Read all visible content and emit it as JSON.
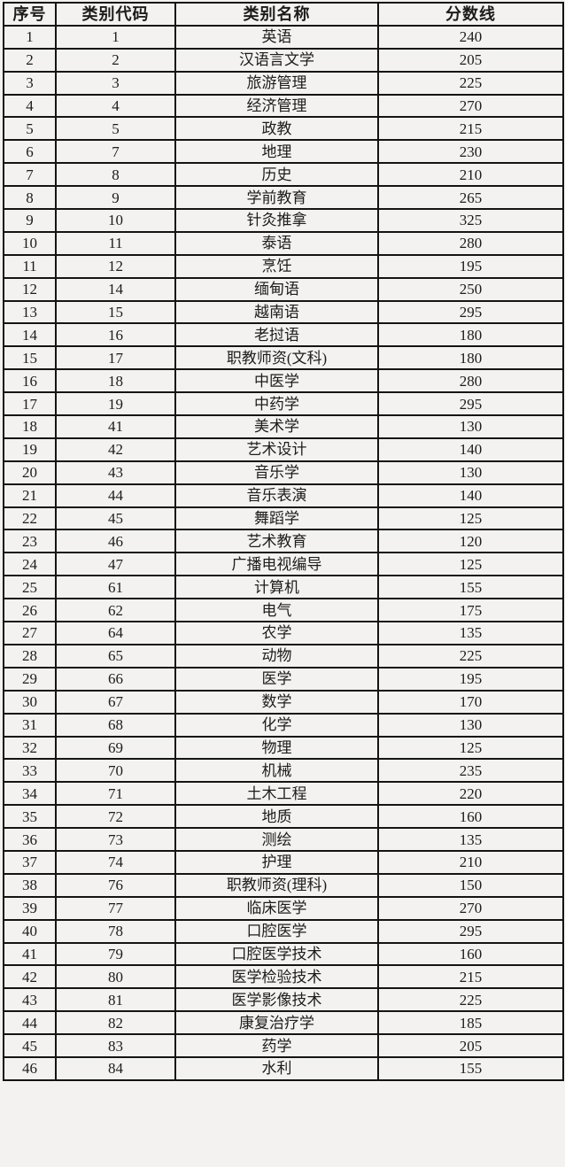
{
  "table": {
    "columns": [
      "序号",
      "类别代码",
      "类别名称",
      "分数线"
    ],
    "column_keys": [
      "index",
      "category-code",
      "category-name",
      "score-line"
    ],
    "rows": [
      [
        "1",
        "1",
        "英语",
        "240"
      ],
      [
        "2",
        "2",
        "汉语言文学",
        "205"
      ],
      [
        "3",
        "3",
        "旅游管理",
        "225"
      ],
      [
        "4",
        "4",
        "经济管理",
        "270"
      ],
      [
        "5",
        "5",
        "政教",
        "215"
      ],
      [
        "6",
        "7",
        "地理",
        "230"
      ],
      [
        "7",
        "8",
        "历史",
        "210"
      ],
      [
        "8",
        "9",
        "学前教育",
        "265"
      ],
      [
        "9",
        "10",
        "针灸推拿",
        "325"
      ],
      [
        "10",
        "11",
        "泰语",
        "280"
      ],
      [
        "11",
        "12",
        "烹饪",
        "195"
      ],
      [
        "12",
        "14",
        "缅甸语",
        "250"
      ],
      [
        "13",
        "15",
        "越南语",
        "295"
      ],
      [
        "14",
        "16",
        "老挝语",
        "180"
      ],
      [
        "15",
        "17",
        "职教师资(文科)",
        "180"
      ],
      [
        "16",
        "18",
        "中医学",
        "280"
      ],
      [
        "17",
        "19",
        "中药学",
        "295"
      ],
      [
        "18",
        "41",
        "美术学",
        "130"
      ],
      [
        "19",
        "42",
        "艺术设计",
        "140"
      ],
      [
        "20",
        "43",
        "音乐学",
        "130"
      ],
      [
        "21",
        "44",
        "音乐表演",
        "140"
      ],
      [
        "22",
        "45",
        "舞蹈学",
        "125"
      ],
      [
        "23",
        "46",
        "艺术教育",
        "120"
      ],
      [
        "24",
        "47",
        "广播电视编导",
        "125"
      ],
      [
        "25",
        "61",
        "计算机",
        "155"
      ],
      [
        "26",
        "62",
        "电气",
        "175"
      ],
      [
        "27",
        "64",
        "农学",
        "135"
      ],
      [
        "28",
        "65",
        "动物",
        "225"
      ],
      [
        "29",
        "66",
        "医学",
        "195"
      ],
      [
        "30",
        "67",
        "数学",
        "170"
      ],
      [
        "31",
        "68",
        "化学",
        "130"
      ],
      [
        "32",
        "69",
        "物理",
        "125"
      ],
      [
        "33",
        "70",
        "机械",
        "235"
      ],
      [
        "34",
        "71",
        "土木工程",
        "220"
      ],
      [
        "35",
        "72",
        "地质",
        "160"
      ],
      [
        "36",
        "73",
        "测绘",
        "135"
      ],
      [
        "37",
        "74",
        "护理",
        "210"
      ],
      [
        "38",
        "76",
        "职教师资(理科)",
        "150"
      ],
      [
        "39",
        "77",
        "临床医学",
        "270"
      ],
      [
        "40",
        "78",
        "口腔医学",
        "295"
      ],
      [
        "41",
        "79",
        "口腔医学技术",
        "160"
      ],
      [
        "42",
        "80",
        "医学检验技术",
        "215"
      ],
      [
        "43",
        "81",
        "医学影像技术",
        "225"
      ],
      [
        "44",
        "82",
        "康复治疗学",
        "185"
      ],
      [
        "45",
        "83",
        "药学",
        "205"
      ],
      [
        "46",
        "84",
        "水利",
        "155"
      ]
    ],
    "colors": {
      "background": "#f3f2f0",
      "border": "#141414",
      "text": "#1c1c1c"
    }
  }
}
